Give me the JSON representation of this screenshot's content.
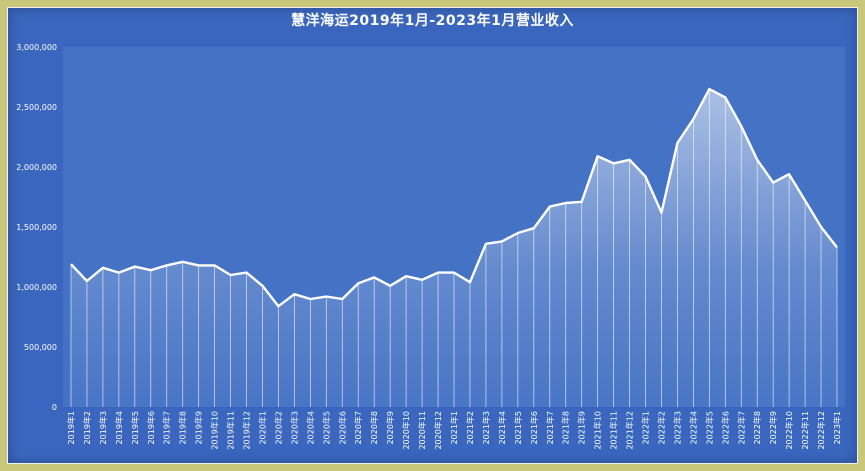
{
  "chart_data": {
    "type": "area",
    "title": "慧洋海运2019年1月-2023年1月营业收入",
    "xlabel": "",
    "ylabel": "",
    "ylim": [
      0,
      3000000
    ],
    "yticks": [
      "0",
      "500,000",
      "1,000,000",
      "1,500,000",
      "2,000,000",
      "2,500,000",
      "3,000,000"
    ],
    "grid": false,
    "legend": "none",
    "categories": [
      "2019年1",
      "2019年2",
      "2019年3",
      "2019年4",
      "2019年5",
      "2019年6",
      "2019年7",
      "2019年8",
      "2019年9",
      "2019年10",
      "2019年11",
      "2019年12",
      "2020年1",
      "2020年2",
      "2020年3",
      "2020年4",
      "2020年5",
      "2020年6",
      "2020年7",
      "2020年8",
      "2020年9",
      "2020年10",
      "2020年11",
      "2020年12",
      "2021年1",
      "2021年2",
      "2021年3",
      "2021年4",
      "2021年5",
      "2021年6",
      "2021年7",
      "2021年8",
      "2021年9",
      "2021年10",
      "2021年11",
      "2021年12",
      "2022年1",
      "2022年2",
      "2022年3",
      "2022年4",
      "2022年5",
      "2022年6",
      "2022年7",
      "2022年8",
      "2022年9",
      "2022年10",
      "2022年11",
      "2022年12",
      "2023年1"
    ],
    "values": [
      1190000,
      1050000,
      1160000,
      1120000,
      1170000,
      1140000,
      1180000,
      1210000,
      1180000,
      1180000,
      1100000,
      1120000,
      1010000,
      840000,
      940000,
      900000,
      920000,
      900000,
      1030000,
      1080000,
      1010000,
      1090000,
      1060000,
      1120000,
      1120000,
      1040000,
      1360000,
      1380000,
      1450000,
      1490000,
      1670000,
      1700000,
      1710000,
      2090000,
      2030000,
      2060000,
      1920000,
      1620000,
      2200000,
      2400000,
      2650000,
      2580000,
      2340000,
      2060000,
      1870000,
      1940000,
      1720000,
      1500000,
      1330000
    ],
    "colors": {
      "background": "#3a66bf",
      "plot_area": "#4472c4",
      "line": "#ffffff",
      "fill_top": "#ffffff",
      "frame": "#c9c77a"
    }
  }
}
